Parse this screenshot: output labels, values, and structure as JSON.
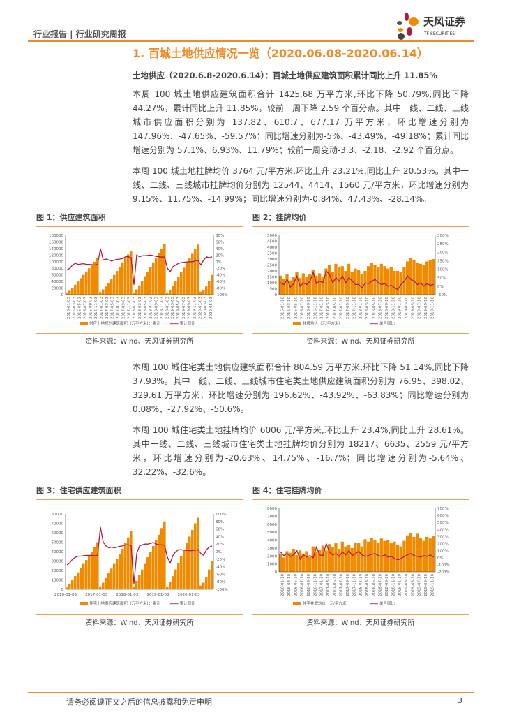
{
  "header": {
    "left_text": "行业报告 | 行业研究周报",
    "logo_cn": "天风证券",
    "logo_en": "TF SECURITIES"
  },
  "section_title": "1. 百城土地供应情况一览（2020.06.08-2020.06.14）",
  "subheading": "土地供应（2020.6.8-2020.6.14）：百城土地供应建筑面积累计同比上升 11.85%",
  "paragraphs": [
    "本周 100 城土地供应建筑面积合计 1425.68 万平方米,环比下降 50.79%,同比下降 44.27%，累计同比上升 11.85%，较前一周下降 2.59 个百分点。其中一线、二线、三线城市供应面积分别为 137.82、610.7、677.17 万平方米，环比增速分别为 147.96%、-47.65%、-59.57%；同比增速分别为-5%、-43.49%、-49.18%；累计同比增速分别为 57.1%、6.93%、11.79%；较前一周变动-3.3、-2.18、-2.92 个百分点。",
    "本周 100 城土地挂牌均价 3764 元/平方米,环比上升 23.21%,同比上升 20.53%。其中一线、二线、三线城市挂牌均价分别为 12544、4414、1560 元/平方米，环比增速分别为 9.15%、11.75%、-14.99%；同比增速分别为-0.84%、47.43%、-28.14%。",
    "本周 100 城住宅类土地供应建筑面积合计 804.59 万平方米,环比下降 51.14%,同比下降 37.93%。其中一线、二线、三线城市住宅类土地供应建筑面积分别为 76.95、398.02、329.61 万平方米，环比增速分别为 196.62%、-43.92%、-63.83%；同比增速分别为 0.08%、-27.92%、-50.6%。",
    "本周 100 城住宅类土地挂牌均价 6006 元/平方米,环比上升 23.4%,同比上升 28.61%。其中一线、二线、三线城市住宅类土地挂牌均价分别为 18217、6635、2559 元/平方米，环比增速分别为-20.63%、14.75%、-16.7%；同比增速分别为-5.64%、32.22%、-32.6%。"
  ],
  "figures": [
    {
      "caption": "图 1：供应建筑面积",
      "source": "资料来源：Wind、天风证券研究所"
    },
    {
      "caption": "图 2：挂牌均价",
      "source": "资料来源：Wind、天风证券研究所"
    },
    {
      "caption": "图 3：住宅供应建筑面积",
      "source": "资料来源：Wind、天风证券研究所"
    },
    {
      "caption": "图 4：住宅挂牌均价",
      "source": "资料来源：Wind、天风证券研究所"
    }
  ],
  "colors": {
    "accent": "#f08a24",
    "bar": "#f08a00",
    "line": "#b5173b"
  },
  "chart_data": [
    {
      "type": "bar+line",
      "x_ticks": [
        "2016-01-03",
        "2016-03-03",
        "2016-05-03",
        "2016-07-03",
        "2016-09-03",
        "2016-11-03",
        "2017-01-03",
        "2017-03-03",
        "2017-05-03",
        "2017-07-03",
        "2017-09-03",
        "2017-11-03",
        "2018-01-03",
        "2018-03-03",
        "2018-05-03",
        "2018-07-03",
        "2018-09-03",
        "2018-11-03",
        "2019-01-03",
        "2019-03-03",
        "2019-05-03",
        "2019-07-03",
        "2019-09-03",
        "2019-11-03",
        "2020-01-03",
        "2020-03-03",
        "2020-05-03"
      ],
      "y_left": {
        "range": [
          0,
          180000
        ],
        "ticks": [
          "0",
          "20000",
          "40000",
          "60000",
          "80000",
          "100000",
          "120000",
          "140000",
          "160000",
          "180000"
        ]
      },
      "y_right": {
        "range": [
          -100,
          80
        ],
        "ticks": [
          "-100%",
          "-80%",
          "-60%",
          "-40%",
          "-20%",
          "0%",
          "20%",
          "40%",
          "60%",
          "80%"
        ]
      },
      "series": [
        {
          "name": "供应土地规划建筑面积（万平方米）：累计",
          "kind": "bar",
          "axis": "left",
          "values": [
            5000,
            12000,
            20000,
            30000,
            40000,
            50000,
            60000,
            70000,
            80000,
            90000,
            100000,
            112000,
            8000,
            16000,
            25000,
            36000,
            48000,
            60000,
            72000,
            85000,
            98000,
            110000,
            122000,
            133000,
            6000,
            16000,
            28000,
            42000,
            56000,
            70000,
            84000,
            98000,
            112000,
            126000,
            140000,
            153000,
            5000,
            14000,
            26000,
            40000,
            54000,
            68000,
            82000,
            96000,
            110000,
            124000,
            138000,
            152000,
            9000,
            14000,
            25000,
            42000,
            60000
          ]
        },
        {
          "name": "累计同比",
          "kind": "line",
          "axis": "right",
          "values": [
            -25,
            -20,
            -10,
            -5,
            -8,
            -7,
            -6,
            -8,
            -8,
            -9,
            -10,
            -8,
            40,
            5,
            8,
            5,
            2,
            5,
            7,
            8,
            10,
            15,
            15,
            12,
            -70,
            20,
            15,
            18,
            18,
            19,
            20,
            18,
            16,
            15,
            14,
            14,
            -20,
            -30,
            -15,
            -10,
            -5,
            -3,
            -2,
            -1,
            0,
            0,
            2,
            4,
            -10,
            5,
            15,
            12,
            15
          ]
        }
      ]
    },
    {
      "type": "bar+line",
      "x_ticks": [
        "2016-01-10",
        "2016-03-10",
        "2016-05-10",
        "2016-07-10",
        "2016-09-10",
        "2016-11-10",
        "2017-01-10",
        "2017-03-10",
        "2017-05-10",
        "2017-07-10",
        "2017-09-10",
        "2017-11-10",
        "2018-01-10",
        "2018-03-10",
        "2018-05-10",
        "2018-07-10",
        "2018-09-10",
        "2018-11-10",
        "2019-01-10",
        "2019-03-10",
        "2019-05-10",
        "2019-07-10",
        "2019-09-10",
        "2019-11-10"
      ],
      "y_left": {
        "range": [
          0,
          5000
        ],
        "ticks": [
          "0",
          "500",
          "1000",
          "1500",
          "2000",
          "2500",
          "3000",
          "3500",
          "4000",
          "4500",
          "5000"
        ]
      },
      "y_right": {
        "range": [
          -50,
          300
        ],
        "ticks": [
          "-50%",
          "0%",
          "50%",
          "100%",
          "150%",
          "200%",
          "250%",
          "300%"
        ]
      },
      "series": [
        {
          "name": "挂牌均价（元/平方米）",
          "kind": "bar",
          "axis": "left",
          "values": [
            1600,
            1300,
            1700,
            1200,
            1500,
            1900,
            1400,
            1800,
            1500,
            1700,
            2100,
            1600,
            1800,
            1500,
            2200,
            2500,
            1900,
            2600,
            2300,
            2400,
            2000,
            2600,
            1900,
            2200,
            2100,
            1700,
            2000,
            2400,
            2700,
            2500,
            2300,
            2600,
            2400,
            2200,
            2300,
            2000,
            2000,
            1900,
            2300,
            2800,
            3100,
            2900,
            2700,
            2600,
            2500,
            2800,
            2900,
            3000
          ]
        },
        {
          "name": "单月同比",
          "kind": "line",
          "axis": "right",
          "values": [
            20,
            10,
            40,
            -5,
            15,
            60,
            0,
            20,
            10,
            30,
            80,
            15,
            30,
            20,
            90,
            70,
            20,
            50,
            30,
            60,
            20,
            50,
            30,
            10,
            10,
            -10,
            20,
            15,
            30,
            40,
            20,
            10,
            15,
            0,
            5,
            -10,
            -20,
            10,
            30,
            60,
            40,
            30,
            10,
            20,
            0,
            15,
            5,
            10
          ]
        }
      ]
    },
    {
      "type": "bar+line",
      "x_ticks": [
        "2016-01-03",
        "2017-01-03",
        "2018-01-03",
        "2019-01-03",
        "2020-01-03"
      ],
      "y_left": {
        "range": [
          0,
          80000
        ],
        "ticks": [
          "0",
          "10000",
          "20000",
          "30000",
          "40000",
          "50000",
          "60000",
          "70000",
          "80000"
        ]
      },
      "y_right": {
        "range": [
          -100,
          100
        ],
        "ticks": [
          "-100%",
          "-80%",
          "-60%",
          "-40%",
          "-20%",
          "0%",
          "20%",
          "40%",
          "60%",
          "80%",
          "100%"
        ]
      },
      "series": [
        {
          "name": "住宅土地供应建筑面积（万平方米）：累计",
          "kind": "bar",
          "axis": "left",
          "values": [
            2000,
            6000,
            10000,
            14000,
            18000,
            23000,
            27000,
            31000,
            35000,
            40000,
            45000,
            50000,
            3000,
            7000,
            12000,
            17000,
            22000,
            27000,
            32000,
            37000,
            43000,
            49000,
            55000,
            62000,
            3000,
            9000,
            15000,
            21000,
            27000,
            34000,
            40000,
            46000,
            52000,
            58000,
            65000,
            72000,
            3000,
            8000,
            14000,
            21000,
            28000,
            35000,
            42000,
            49000,
            56000,
            63000,
            70000,
            76000,
            4000,
            7000,
            13000,
            21000,
            30000
          ]
        },
        {
          "name": "累计同比",
          "kind": "line",
          "axis": "right",
          "values": [
            -35,
            -30,
            -20,
            -15,
            -12,
            -12,
            -11,
            -10,
            -10,
            -10,
            -11,
            -10,
            65,
            25,
            15,
            10,
            12,
            10,
            12,
            14,
            15,
            18,
            18,
            16,
            -85,
            -5,
            15,
            18,
            20,
            20,
            22,
            24,
            20,
            18,
            18,
            17,
            -15,
            -30,
            -10,
            0,
            5,
            5,
            4,
            3,
            2,
            3,
            4,
            5,
            -5,
            -10,
            5,
            12,
            15
          ]
        }
      ]
    },
    {
      "type": "bar+line",
      "x_ticks": [
        "2016-01-10",
        "2016-03-10",
        "2016-05-10",
        "2016-07-10",
        "2016-09-10",
        "2016-11-10",
        "2017-01-10",
        "2017-03-10",
        "2017-05-10",
        "2017-07-10",
        "2017-09-10",
        "2017-11-10",
        "2018-01-10",
        "2018-03-10",
        "2018-05-10",
        "2018-07-10",
        "2018-09-10",
        "2018-11-10",
        "2019-01-10",
        "2019-03-10",
        "2019-05-10",
        "2019-07-10",
        "2019-09-10",
        "2019-11-10"
      ],
      "y_left": {
        "range": [
          0,
          8000
        ],
        "ticks": [
          "0",
          "1000",
          "2000",
          "3000",
          "4000",
          "5000",
          "6000",
          "7000",
          "8000"
        ]
      },
      "y_right": {
        "range": [
          -200,
          700
        ],
        "ticks": [
          "-200%",
          "-100%",
          "0%",
          "100%",
          "200%",
          "300%",
          "400%",
          "500%",
          "600%",
          "700%"
        ]
      },
      "series": [
        {
          "name": "住宅挂牌均价（元/平方米）",
          "kind": "bar",
          "axis": "left",
          "values": [
            2200,
            1800,
            2600,
            2400,
            2900,
            2100,
            2700,
            2300,
            2600,
            1900,
            3200,
            2500,
            2800,
            3300,
            2700,
            3500,
            3100,
            3600,
            2900,
            3800,
            3200,
            3400,
            3000,
            3700,
            3600,
            3200,
            4100,
            3800,
            4300,
            4000,
            3700,
            4200,
            3900,
            4000,
            3600,
            3800,
            3400,
            3200,
            3900,
            4600,
            4900,
            4400,
            4800,
            4300,
            3900,
            4400,
            4200,
            4500
          ]
        },
        {
          "name": "单月同比",
          "kind": "line",
          "axis": "right",
          "values": [
            80,
            30,
            60,
            20,
            40,
            100,
            -20,
            40,
            10,
            30,
            0,
            150,
            40,
            30,
            200,
            80,
            40,
            60,
            20,
            80,
            40,
            100,
            30,
            60,
            90,
            40,
            20,
            30,
            50,
            60,
            30,
            20,
            40,
            10,
            20,
            -10,
            -30,
            -10,
            20,
            40,
            60,
            30,
            20,
            10,
            30,
            20,
            40,
            10
          ]
        }
      ]
    }
  ],
  "footer": {
    "disclaimer": "请务必阅读正文之后的信息披露和免责申明",
    "page_number": "3"
  }
}
